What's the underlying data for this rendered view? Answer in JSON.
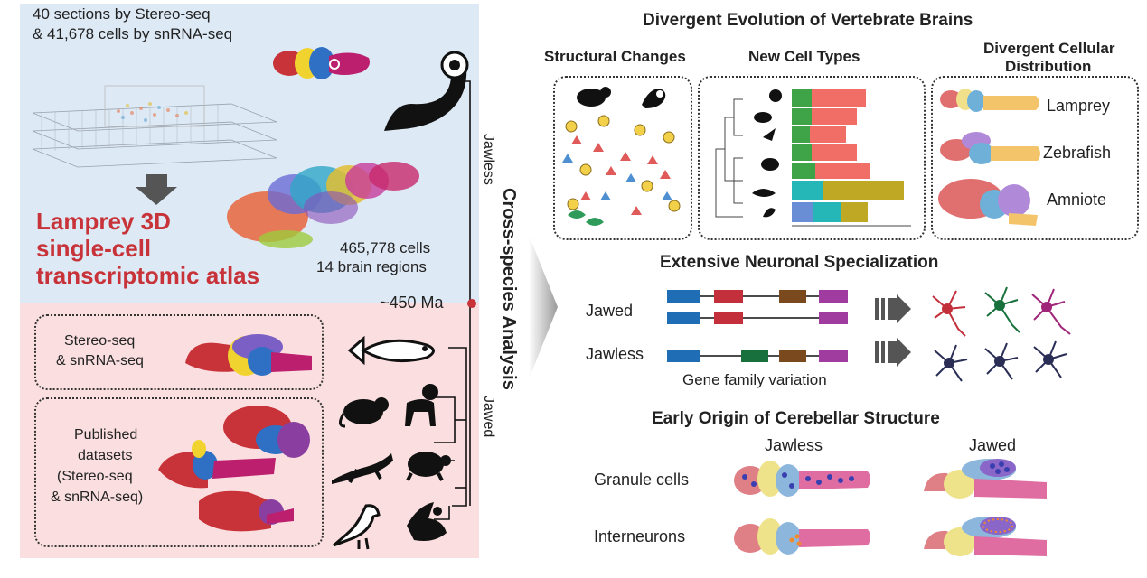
{
  "left_panel": {
    "intro_line1": "40 sections by Stereo-seq",
    "intro_line2": "& 41,678 cells by snRNA-seq",
    "atlas_title": [
      "Lamprey 3D",
      "single-cell",
      "transcriptomic atlas"
    ],
    "cell_count": "465,778 cells",
    "region_count": "14 brain regions",
    "divergence_time": "~450 Ma",
    "box1_line1": "Stereo-seq",
    "box1_line2": "& snRNA-seq",
    "box2_lines": [
      "Published",
      "datasets",
      "(Stereo-seq",
      "& snRNA-seq)"
    ],
    "jawless_label": "Jawless",
    "jawed_label": "Jawed"
  },
  "center": {
    "cross_species_label": "Cross-species Analysis"
  },
  "right_panel": {
    "main_title": "Divergent Evolution of Vertebrate Brains",
    "structural_changes": "Structural Changes",
    "new_cell_types": "New Cell Types",
    "divergent_distribution": [
      "Divergent Cellular",
      "Distribution"
    ],
    "species": [
      "Lamprey",
      "Zebrafish",
      "Amniote"
    ],
    "neuronal_title": "Extensive Neuronal Specialization",
    "jawed": "Jawed",
    "jawless": "Jawless",
    "gene_family": "Gene family variation",
    "cerebellar_title": "Early Origin of Cerebellar Structure",
    "col_jawless": "Jawless",
    "col_jawed": "Jawed",
    "granule": "Granule cells",
    "interneurons": "Interneurons"
  },
  "colors": {
    "blue_panel": "#dde9f5",
    "pink_panel": "#fbdfe0",
    "title_red": "#c83339"
  }
}
